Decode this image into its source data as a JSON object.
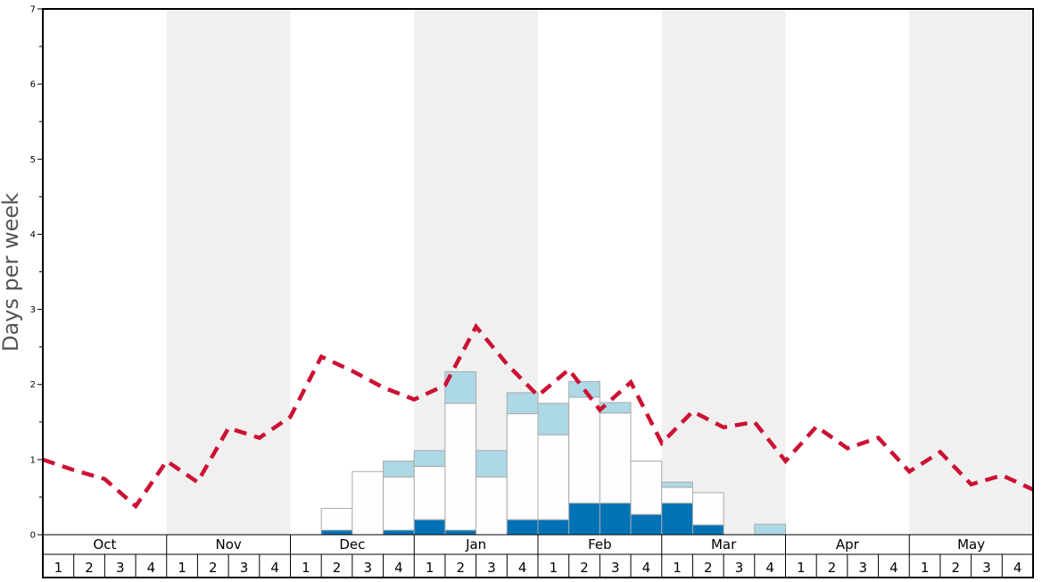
{
  "chart_data": {
    "type": "bar",
    "ylabel": "Days per week",
    "ylim": [
      0,
      7
    ],
    "y_ticks": [
      "0",
      "1",
      "2",
      "3",
      "4",
      "5",
      "6",
      "7"
    ],
    "months": [
      "Oct",
      "Nov",
      "Dec",
      "Jan",
      "Feb",
      "Mar",
      "Apr",
      "May"
    ],
    "weeks": [
      "1",
      "2",
      "3",
      "4"
    ],
    "shaded_months": [
      "Nov",
      "Jan",
      "Mar",
      "May"
    ],
    "stack_order": [
      "dark",
      "white",
      "light"
    ],
    "colors": {
      "dark": "#0072b5",
      "white": "#fefefe",
      "light": "#add8e6",
      "line": "#cc1133",
      "shade": "#f0f0f0",
      "bar_border": "#aaaaaa"
    },
    "bars": [
      {
        "month": "Dec",
        "week": "2",
        "dark": 0.06,
        "white": 0.29,
        "light": 0
      },
      {
        "month": "Dec",
        "week": "3",
        "dark": 0,
        "white": 0.84,
        "light": 0
      },
      {
        "month": "Dec",
        "week": "4",
        "dark": 0.06,
        "white": 0.71,
        "light": 0.21
      },
      {
        "month": "Jan",
        "week": "1",
        "dark": 0.2,
        "white": 0.71,
        "light": 0.21
      },
      {
        "month": "Jan",
        "week": "2",
        "dark": 0.06,
        "white": 1.69,
        "light": 0.42
      },
      {
        "month": "Jan",
        "week": "3",
        "dark": 0,
        "white": 0.77,
        "light": 0.35
      },
      {
        "month": "Jan",
        "week": "4",
        "dark": 0.2,
        "white": 1.41,
        "light": 0.28
      },
      {
        "month": "Feb",
        "week": "1",
        "dark": 0.2,
        "white": 1.13,
        "light": 0.42
      },
      {
        "month": "Feb",
        "week": "2",
        "dark": 0.42,
        "white": 1.41,
        "light": 0.21
      },
      {
        "month": "Feb",
        "week": "3",
        "dark": 0.42,
        "white": 1.2,
        "light": 0.14
      },
      {
        "month": "Feb",
        "week": "4",
        "dark": 0.27,
        "white": 0.71,
        "light": 0
      },
      {
        "month": "Mar",
        "week": "1",
        "dark": 0.42,
        "white": 0.21,
        "light": 0.07
      },
      {
        "month": "Mar",
        "week": "2",
        "dark": 0.13,
        "white": 0.43,
        "light": 0
      },
      {
        "month": "Mar",
        "week": "4",
        "dark": 0,
        "white": 0,
        "light": 0.14
      }
    ],
    "line": [
      1.0,
      0.86,
      0.74,
      0.38,
      0.98,
      0.7,
      1.42,
      1.29,
      1.57,
      2.37,
      2.18,
      1.96,
      1.8,
      1.99,
      2.77,
      2.27,
      1.85,
      2.2,
      1.66,
      2.03,
      1.22,
      1.64,
      1.43,
      1.5,
      0.98,
      1.44,
      1.15,
      1.29,
      0.84,
      1.1,
      0.67,
      0.79,
      0.6
    ]
  }
}
